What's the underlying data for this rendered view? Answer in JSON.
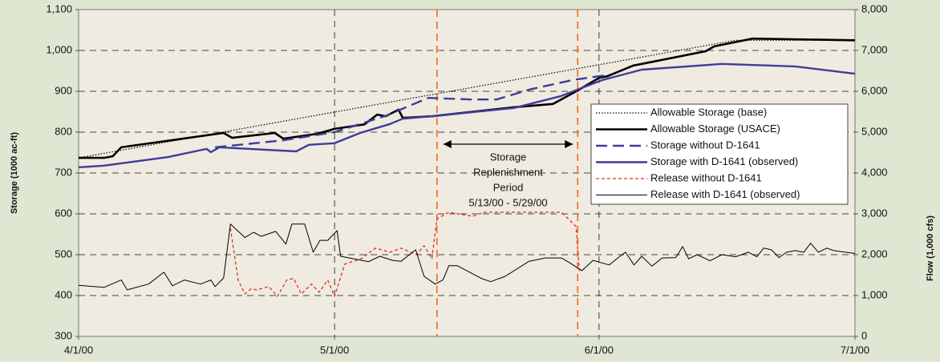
{
  "chart_data": {
    "type": "line",
    "ylabel": "Storage (1000 ac-ft)",
    "y2label": "Flow (1,000 cfs)",
    "xlim": [
      0,
      91
    ],
    "xticks": [
      {
        "value": 0,
        "label": "4/1/00"
      },
      {
        "value": 30,
        "label": "5/1/00"
      },
      {
        "value": 61,
        "label": "6/1/00"
      },
      {
        "value": 91,
        "label": "7/1/00"
      }
    ],
    "ylim": [
      300,
      1100
    ],
    "yticks": [
      300,
      400,
      500,
      600,
      700,
      800,
      900,
      {
        "value": 1000,
        "label": "1,000"
      },
      {
        "value": 1100,
        "label": "1,100"
      }
    ],
    "y2lim": [
      0,
      8000
    ],
    "y2ticks": [
      0,
      {
        "value": 1000,
        "label": "1,000"
      },
      {
        "value": 2000,
        "label": "2,000"
      },
      {
        "value": 3000,
        "label": "3,000"
      },
      {
        "value": 4000,
        "label": "4,000"
      },
      {
        "value": 5000,
        "label": "5,000"
      },
      {
        "value": 6000,
        "label": "6,000"
      },
      {
        "value": 7000,
        "label": "7,000"
      },
      {
        "value": 8000,
        "label": "8,000"
      }
    ],
    "grid": true,
    "legend": "right",
    "vlines": [
      {
        "x": 42,
        "color": "#f06a1e"
      },
      {
        "x": 58.5,
        "color": "#f06a1e"
      }
    ],
    "annotation": [
      "Storage",
      "Replenishment",
      "Period",
      "5/13/00 - 5/29/00"
    ],
    "series": [
      {
        "name": "Allowable Storage (base)",
        "color": "#000000",
        "style": "dotted",
        "width": 1.2,
        "x": [
          0,
          77,
          91
        ],
        "values": [
          737,
          1025,
          1025
        ]
      },
      {
        "name": "Allowable Storage (USACE)",
        "color": "#000000",
        "style": "solid",
        "width": 2.6,
        "x": [
          0,
          3,
          4,
          5,
          17,
          18,
          23,
          24,
          28,
          30,
          33.5,
          35,
          36,
          37.5,
          38,
          41.5,
          51,
          55.6,
          58.5,
          61,
          62,
          65,
          66,
          73.5,
          74.5,
          79,
          91
        ],
        "values": [
          737,
          737,
          741,
          763,
          798,
          786,
          798,
          784,
          796,
          808,
          819,
          843,
          839,
          855,
          835,
          839,
          861,
          869,
          902,
          933,
          937,
          963,
          967,
          998,
          1010,
          1029,
          1025
        ]
      },
      {
        "name": "Storage without D-1641",
        "color": "#3d3d99",
        "style": "dashed",
        "width": 2.4,
        "x": [
          16,
          24,
          30,
          36,
          41,
          46,
          49,
          53,
          58,
          62
        ],
        "values": [
          763,
          780,
          800,
          840,
          884,
          880,
          880,
          905,
          928,
          940
        ]
      },
      {
        "name": "Storage with D-1641 (observed)",
        "color": "#3d3d99",
        "style": "solid",
        "width": 2.4,
        "x": [
          0,
          3,
          10.5,
          15,
          15.5,
          16.5,
          25.5,
          27,
          30,
          33,
          36.5,
          38,
          41.5,
          51,
          56.5,
          61.3,
          66,
          75.4,
          84,
          91
        ],
        "values": [
          714,
          718,
          739,
          759,
          751,
          763,
          753,
          769,
          773,
          798,
          820,
          833,
          839,
          859,
          888,
          927,
          953,
          967,
          961,
          943
        ]
      },
      {
        "name": "Release without D-1641",
        "color": "#e03020",
        "style": "dashed-fine",
        "width": 1.3,
        "axis": "y2",
        "x": [
          17.8,
          18.7,
          19.5,
          20.2,
          20.9,
          22.3,
          23.3,
          24.4,
          25.2,
          26.1,
          27.3,
          28.2,
          29.2,
          30,
          31.2,
          33.1,
          34.8,
          36.5,
          37.8,
          39.6,
          40.5,
          41.4,
          42,
          43.4,
          46.2,
          47.5,
          56.6,
          58.3,
          58.7
        ],
        "values": [
          2650,
          1380,
          1040,
          1160,
          1140,
          1220,
          980,
          1380,
          1420,
          1040,
          1280,
          1080,
          1380,
          980,
          1770,
          1900,
          2160,
          2060,
          2160,
          2000,
          2220,
          1900,
          2880,
          3040,
          2940,
          3040,
          3040,
          2690,
          1600
        ]
      },
      {
        "name": "Release with D-1641 (observed)",
        "color": "#000000",
        "style": "solid",
        "width": 1,
        "axis": "y2",
        "x": [
          0,
          3,
          5,
          5.7,
          8.2,
          10,
          11,
          12.4,
          14.3,
          15.5,
          16,
          17,
          17.8,
          19.5,
          20.5,
          21.4,
          23.1,
          24.3,
          25,
          26.5,
          27.5,
          28.3,
          29.2,
          30.3,
          30.7,
          34,
          35.3,
          36.8,
          37.8,
          39.5,
          40.5,
          41.8,
          42.7,
          43.4,
          44.4,
          47.2,
          48.3,
          50,
          52.8,
          54.7,
          56.6,
          57.5,
          59,
          60.3,
          62.2,
          63.2,
          64.1,
          65.1,
          66,
          67.2,
          68.4,
          70,
          70.8,
          71.5,
          72.5,
          74,
          75.4,
          77,
          78.5,
          79.5,
          80.3,
          81.2,
          82.1,
          83,
          84,
          85,
          85.8,
          86.7,
          87.7,
          88.5,
          91
        ],
        "values": [
          1250,
          1200,
          1380,
          1140,
          1280,
          1570,
          1240,
          1380,
          1280,
          1380,
          1220,
          1430,
          2750,
          2420,
          2550,
          2450,
          2570,
          2260,
          2750,
          2750,
          2060,
          2350,
          2350,
          2590,
          1960,
          1830,
          1960,
          1860,
          1840,
          2120,
          1470,
          1280,
          1380,
          1730,
          1730,
          1420,
          1340,
          1470,
          1840,
          1920,
          1920,
          1810,
          1610,
          1860,
          1750,
          1920,
          2060,
          1750,
          1960,
          1720,
          1920,
          1930,
          2200,
          1900,
          2000,
          1850,
          2000,
          1950,
          2060,
          1950,
          2160,
          2120,
          1930,
          2060,
          2100,
          2060,
          2280,
          2060,
          2160,
          2100,
          2030
        ]
      }
    ]
  }
}
